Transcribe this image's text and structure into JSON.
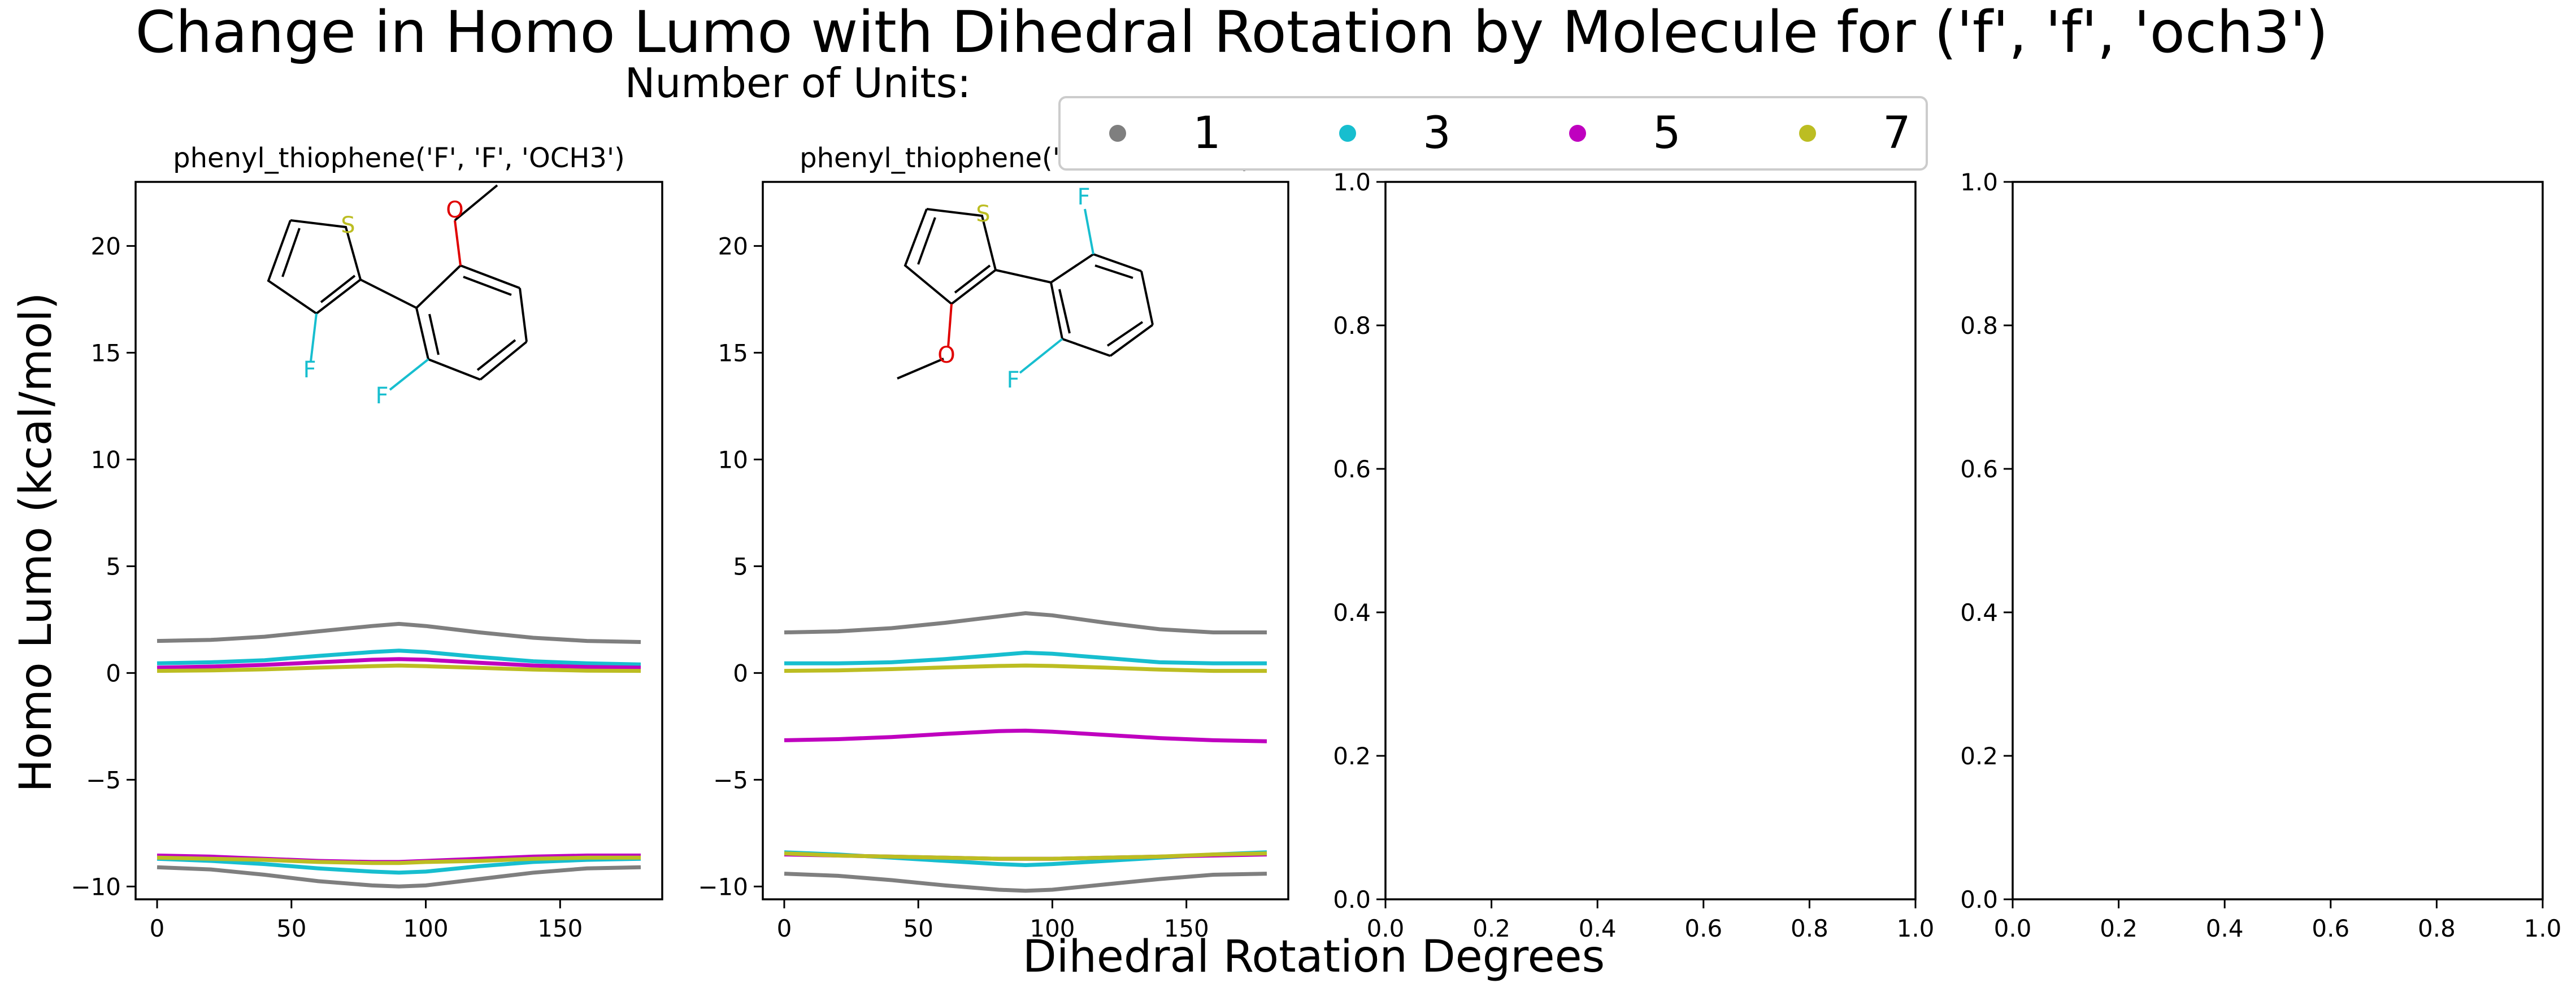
{
  "title": "Change in Homo Lumo with Dihedral Rotation by Molecule for ('f', 'f', 'och3')",
  "xlabel": "Dihedral Rotation Degrees",
  "ylabel": "Homo Lumo (kcal/mol)",
  "legend": {
    "title": "Number of Units:",
    "placement": "top-center",
    "entries": [
      {
        "label": "1",
        "color": "#7f7f7f"
      },
      {
        "label": "3",
        "color": "#17becf"
      },
      {
        "label": "5",
        "color": "#bf00bf"
      },
      {
        "label": "7",
        "color": "#bcbd22"
      }
    ]
  },
  "chart_data": [
    {
      "type": "line",
      "title": "phenyl_thiophene('F', 'F', 'OCH3')",
      "molecule_image": "thiophene-fluoro-with-difluoro-methoxyphenyl",
      "x": [
        0,
        20,
        40,
        60,
        80,
        90,
        100,
        120,
        140,
        160,
        180
      ],
      "xlim": [
        -8,
        188
      ],
      "ylim": [
        -10.6,
        23
      ],
      "xticks": [
        0,
        50,
        100,
        150
      ],
      "yticks": [
        -10,
        -5,
        0,
        5,
        10,
        15,
        20
      ],
      "ytick_labels": [
        "−10",
        "−5",
        "0",
        "5",
        "10",
        "15",
        "20"
      ],
      "series": [
        {
          "name": "1",
          "color": "#7f7f7f",
          "values": [
            1.5,
            1.55,
            1.7,
            1.95,
            2.2,
            2.3,
            2.2,
            1.9,
            1.65,
            1.5,
            1.45
          ]
        },
        {
          "name": "3",
          "color": "#17becf",
          "values": [
            0.45,
            0.5,
            0.6,
            0.8,
            0.98,
            1.05,
            0.98,
            0.75,
            0.55,
            0.45,
            0.4
          ]
        },
        {
          "name": "5",
          "color": "#bf00bf",
          "values": [
            0.25,
            0.3,
            0.38,
            0.5,
            0.62,
            0.65,
            0.62,
            0.48,
            0.35,
            0.28,
            0.25
          ]
        },
        {
          "name": "7",
          "color": "#bcbd22",
          "values": [
            0.1,
            0.12,
            0.17,
            0.25,
            0.32,
            0.35,
            0.32,
            0.24,
            0.16,
            0.11,
            0.1
          ]
        },
        {
          "name": "1",
          "color": "#7f7f7f",
          "values": [
            -9.1,
            -9.2,
            -9.45,
            -9.75,
            -9.95,
            -10.0,
            -9.95,
            -9.65,
            -9.35,
            -9.15,
            -9.1
          ]
        },
        {
          "name": "3",
          "color": "#17becf",
          "values": [
            -8.7,
            -8.8,
            -8.95,
            -9.15,
            -9.3,
            -9.35,
            -9.3,
            -9.05,
            -8.85,
            -8.75,
            -8.7
          ]
        },
        {
          "name": "5",
          "color": "#bf00bf",
          "values": [
            -8.55,
            -8.6,
            -8.7,
            -8.8,
            -8.85,
            -8.85,
            -8.8,
            -8.7,
            -8.6,
            -8.55,
            -8.55
          ]
        },
        {
          "name": "7",
          "color": "#bcbd22",
          "values": [
            -8.65,
            -8.7,
            -8.75,
            -8.85,
            -8.9,
            -8.9,
            -8.85,
            -8.8,
            -8.7,
            -8.65,
            -8.65
          ]
        }
      ]
    },
    {
      "type": "line",
      "title": "phenyl_thiophene('F', 'F', 'OCH3')",
      "molecule_image": "thiophene-methoxy-with-difluorophenyl",
      "x": [
        0,
        20,
        40,
        60,
        80,
        90,
        100,
        120,
        140,
        160,
        180
      ],
      "xlim": [
        -8,
        188
      ],
      "ylim": [
        -10.6,
        23
      ],
      "xticks": [
        0,
        50,
        100,
        150
      ],
      "yticks": [
        -10,
        -5,
        0,
        5,
        10,
        15,
        20
      ],
      "ytick_labels": [
        "−10",
        "−5",
        "0",
        "5",
        "10",
        "15",
        "20"
      ],
      "series": [
        {
          "name": "1",
          "color": "#7f7f7f",
          "values": [
            1.9,
            1.95,
            2.1,
            2.35,
            2.65,
            2.8,
            2.7,
            2.35,
            2.05,
            1.9,
            1.9
          ]
        },
        {
          "name": "3",
          "color": "#17becf",
          "values": [
            0.45,
            0.45,
            0.5,
            0.65,
            0.85,
            0.95,
            0.9,
            0.7,
            0.5,
            0.45,
            0.45
          ]
        },
        {
          "name": "5",
          "color": "#bf00bf",
          "values": [
            -3.15,
            -3.1,
            -3.0,
            -2.85,
            -2.72,
            -2.7,
            -2.75,
            -2.9,
            -3.05,
            -3.15,
            -3.2
          ]
        },
        {
          "name": "7",
          "color": "#bcbd22",
          "values": [
            0.1,
            0.12,
            0.18,
            0.26,
            0.33,
            0.35,
            0.33,
            0.25,
            0.16,
            0.1,
            0.1
          ]
        },
        {
          "name": "1",
          "color": "#7f7f7f",
          "values": [
            -9.4,
            -9.5,
            -9.7,
            -9.95,
            -10.15,
            -10.2,
            -10.15,
            -9.9,
            -9.65,
            -9.45,
            -9.4
          ]
        },
        {
          "name": "3",
          "color": "#17becf",
          "values": [
            -8.4,
            -8.5,
            -8.65,
            -8.8,
            -8.95,
            -9.0,
            -8.95,
            -8.8,
            -8.65,
            -8.5,
            -8.4
          ]
        },
        {
          "name": "5",
          "color": "#bf00bf",
          "values": [
            -8.5,
            -8.55,
            -8.6,
            -8.65,
            -8.7,
            -8.7,
            -8.7,
            -8.65,
            -8.6,
            -8.55,
            -8.5
          ]
        },
        {
          "name": "7",
          "color": "#bcbd22",
          "values": [
            -8.45,
            -8.55,
            -8.6,
            -8.65,
            -8.7,
            -8.7,
            -8.7,
            -8.65,
            -8.6,
            -8.5,
            -8.45
          ]
        }
      ]
    },
    {
      "type": "line",
      "title": "",
      "xlim": [
        0,
        1
      ],
      "ylim": [
        0,
        1
      ],
      "xticks": [
        0,
        0.2,
        0.4,
        0.6,
        0.8,
        1.0
      ],
      "yticks": [
        0,
        0.2,
        0.4,
        0.6,
        0.8,
        1.0
      ],
      "xtick_labels": [
        "0.0",
        "0.2",
        "0.4",
        "0.6",
        "0.8",
        "1.0"
      ],
      "ytick_labels": [
        "0.0",
        "0.2",
        "0.4",
        "0.6",
        "0.8",
        "1.0"
      ],
      "series": []
    },
    {
      "type": "line",
      "title": "",
      "xlim": [
        0,
        1
      ],
      "ylim": [
        0,
        1
      ],
      "xticks": [
        0,
        0.2,
        0.4,
        0.6,
        0.8,
        1.0
      ],
      "yticks": [
        0,
        0.2,
        0.4,
        0.6,
        0.8,
        1.0
      ],
      "xtick_labels": [
        "0.0",
        "0.2",
        "0.4",
        "0.6",
        "0.8",
        "1.0"
      ],
      "ytick_labels": [
        "0.0",
        "0.2",
        "0.4",
        "0.6",
        "0.8",
        "1.0"
      ],
      "series": []
    }
  ]
}
